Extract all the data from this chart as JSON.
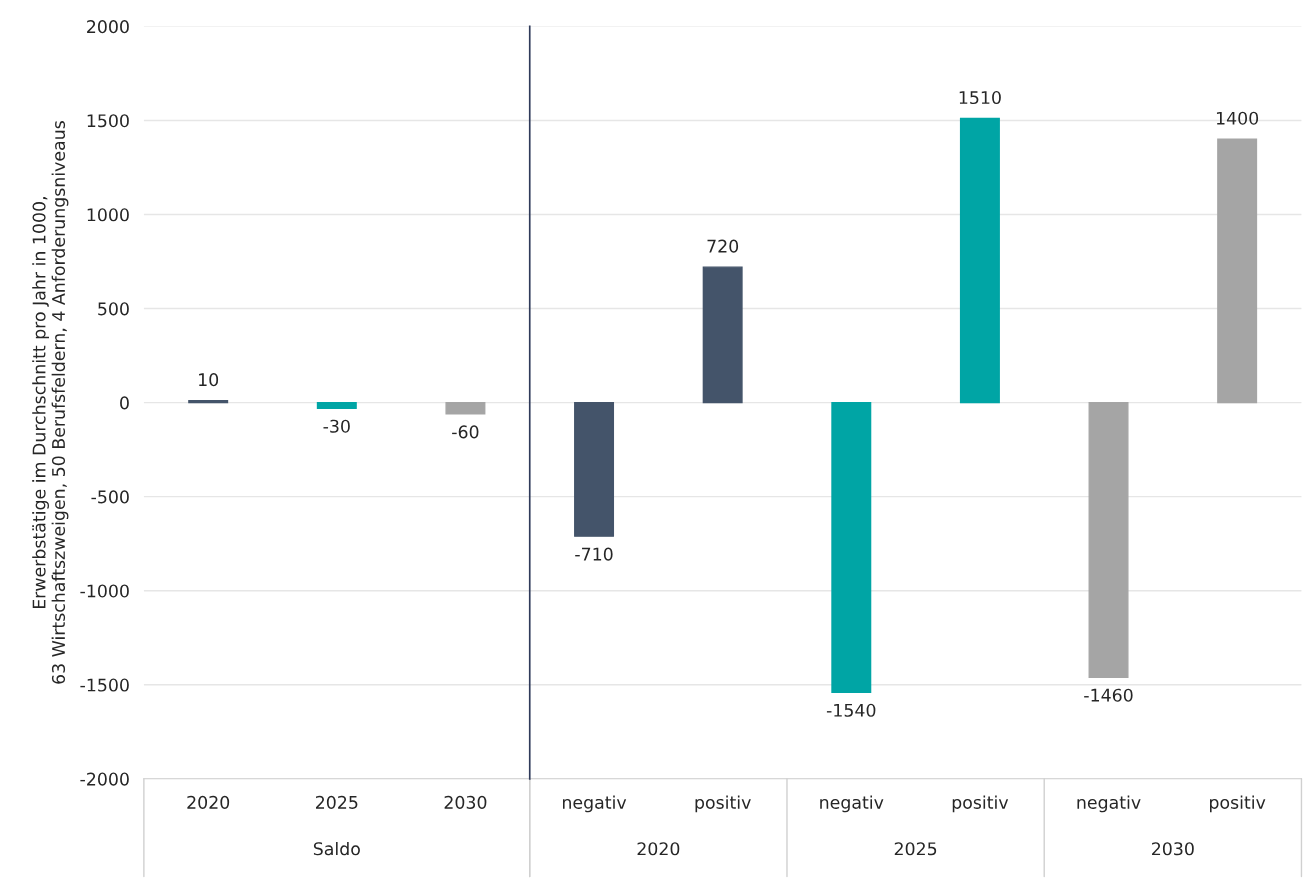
{
  "chart_data": [
    {
      "type": "bar",
      "ylabel": "Erwerbstätige im Durchschnitt pro Jahr in 1000,\n63 Wirtschaftszweigen, 50 Berufsfeldern, 4 Anforderungsniveaus",
      "categories": [
        "2020",
        "2025",
        "2030"
      ],
      "values": [
        10,
        -30,
        -60
      ],
      "colors": [
        "#44546a",
        "#00a5a5",
        "#a5a5a5"
      ],
      "data_labels": true,
      "ylim": [
        -2000,
        2000
      ],
      "yticks": [
        -2000,
        -1500,
        -1000,
        -500,
        0,
        500,
        1000,
        1500,
        2000
      ],
      "grid": "y",
      "annotations": [
        "Saldo"
      ]
    },
    {
      "type": "bar",
      "categories": [
        "negativ",
        "positiv",
        "negativ",
        "positiv",
        "negativ",
        "positiv"
      ],
      "values": [
        -710,
        720,
        -1540,
        1510,
        -1460,
        1400
      ],
      "colors": [
        "#44546a",
        "#44546a",
        "#00a5a5",
        "#00a5a5",
        "#a5a5a5",
        "#a5a5a5"
      ],
      "data_labels": true,
      "ylim": [
        -2000,
        2000
      ],
      "yticks": [
        -2000,
        -1500,
        -1000,
        -500,
        0,
        500,
        1000,
        1500,
        2000
      ],
      "tick_labels": "x",
      "grid": "y",
      "annotations": [
        "2020",
        "2025",
        "2030"
      ]
    }
  ]
}
